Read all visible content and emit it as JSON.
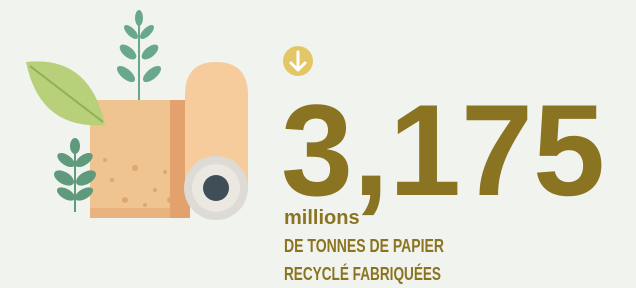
{
  "stat": {
    "value": "3,175",
    "unit": "millions",
    "description_lines": [
      "DE TONNES DE PAPIER",
      "RECYCLÉ FABRIQUÉES"
    ]
  }
}
